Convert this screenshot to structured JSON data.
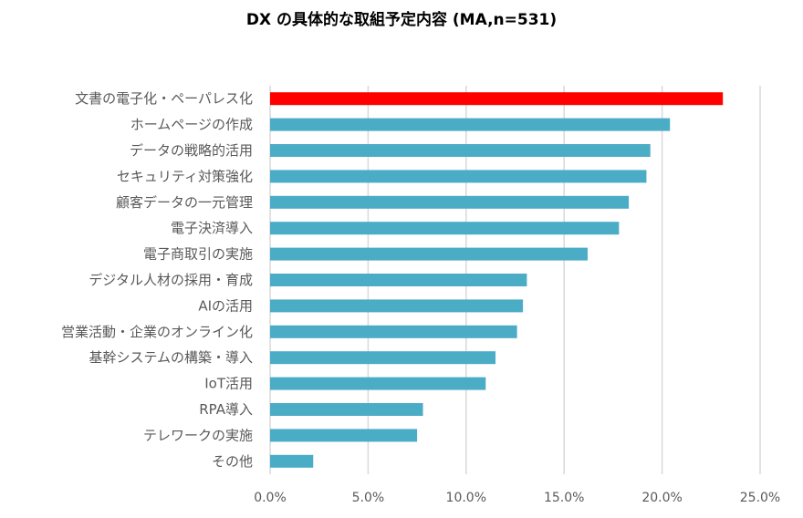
{
  "chart_data": {
    "type": "bar",
    "orientation": "horizontal",
    "title": "DX の具体的な取組予定内容 (MA,n=531)",
    "xlabel": "",
    "ylabel": "",
    "xlim": [
      0,
      25
    ],
    "ticks": [
      0,
      5,
      10,
      15,
      20,
      25
    ],
    "tick_labels": [
      "0.0%",
      "5.0%",
      "10.0%",
      "15.0%",
      "20.0%",
      "25.0%"
    ],
    "grid": true,
    "legend": "none",
    "categories": [
      "文書の電子化・ペーパレス化",
      "ホームページの作成",
      "データの戦略的活用",
      "セキュリティ対策強化",
      "顧客データの一元管理",
      "電子決済導入",
      "電子商取引の実施",
      "デジタル人材の採用・育成",
      "AIの活用",
      "営業活動・企業のオンライン化",
      "基幹システムの構築・導入",
      "IoT活用",
      "RPA導入",
      "テレワークの実施",
      "その他"
    ],
    "values": [
      23.1,
      20.4,
      19.4,
      19.2,
      18.3,
      17.8,
      16.2,
      13.1,
      12.9,
      12.6,
      11.5,
      11.0,
      7.8,
      7.5,
      2.2
    ],
    "colors": {
      "highlight": "#ff0000",
      "default": "#4bacc6"
    },
    "highlight_index": 0
  }
}
